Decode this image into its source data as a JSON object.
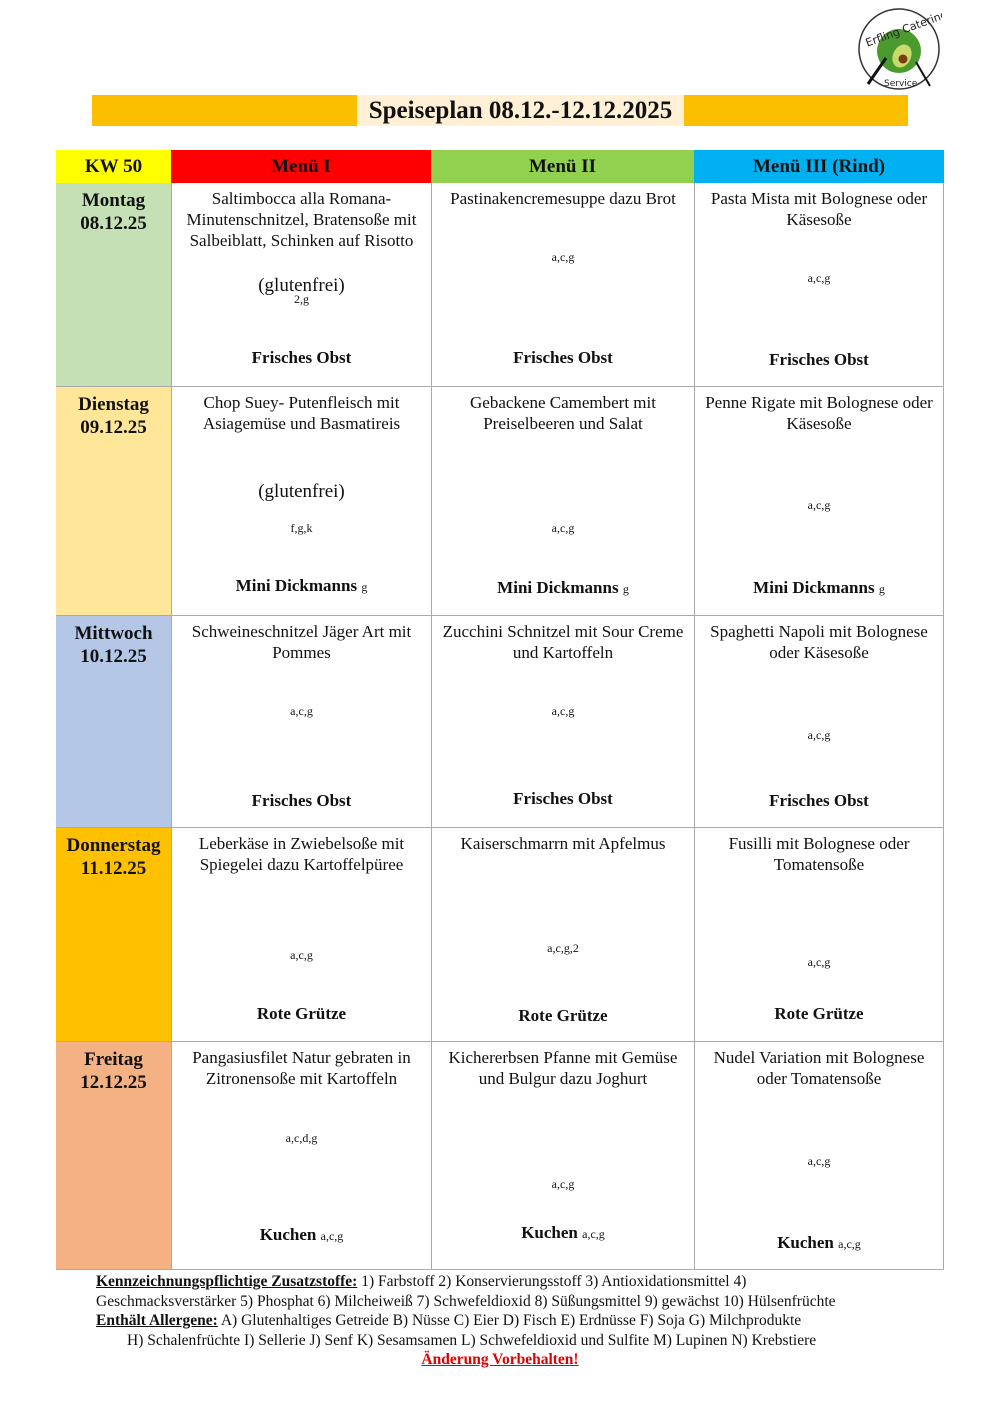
{
  "logo": {
    "text_top": "Erfling Catering",
    "text_bottom": "Service",
    "color": "#4a9a2e"
  },
  "title": "Speiseplan 08.12.-12.12.2025",
  "header": {
    "week": "KW 50",
    "menus": [
      {
        "label": "Menü I",
        "color": "#ff0000"
      },
      {
        "label": "Menü II",
        "color": "#92d050"
      },
      {
        "label": "Menü III (Rind)",
        "color": "#00b0f0"
      }
    ],
    "week_color": "#ffff00"
  },
  "days": [
    {
      "name": "Montag",
      "date": "08.12.25",
      "color": "#c5e0b4",
      "meals": [
        {
          "desc": "Saltimbocca alla Romana- Minutenschnitzel, Bratensoße mit Salbeiblatt, Schinken auf Risotto",
          "note": "(glutenfrei)",
          "code": "2,g",
          "dessert": "Frisches Obst",
          "dessert_code": ""
        },
        {
          "desc": "Pastinakencremesuppe dazu Brot",
          "note": "",
          "code": "a,c,g",
          "dessert": "Frisches Obst",
          "dessert_code": ""
        },
        {
          "desc": "Pasta Mista mit Bolognese oder Käsesoße",
          "note": "",
          "code": "a,c,g",
          "dessert": "Frisches Obst",
          "dessert_code": ""
        }
      ]
    },
    {
      "name": "Dienstag",
      "date": "09.12.25",
      "color": "#ffe699",
      "meals": [
        {
          "desc": "Chop Suey- Putenfleisch mit Asiagemüse und Basmatireis",
          "note": "(glutenfrei)",
          "code": "f,g,k",
          "dessert": "Mini Dickmanns",
          "dessert_code": "g"
        },
        {
          "desc": "Gebackene Camembert mit Preiselbeeren und Salat",
          "note": "",
          "code": "a,c,g",
          "dessert": "Mini Dickmanns",
          "dessert_code": "g"
        },
        {
          "desc": "Penne Rigate mit Bolognese oder Käsesoße",
          "note": "",
          "code": "a,c,g",
          "dessert": "Mini Dickmanns",
          "dessert_code": "g"
        }
      ]
    },
    {
      "name": "Mittwoch",
      "date": "10.12.25",
      "color": "#b4c7e7",
      "meals": [
        {
          "desc": "Schweineschnitzel Jäger Art mit Pommes",
          "note": "",
          "code": "a,c,g",
          "dessert": "Frisches Obst",
          "dessert_code": ""
        },
        {
          "desc": "Zucchini Schnitzel mit Sour Creme und Kartoffeln",
          "note": "",
          "code": "a,c,g",
          "dessert": "Frisches Obst",
          "dessert_code": ""
        },
        {
          "desc": "Spaghetti Napoli mit Bolognese oder Käsesoße",
          "note": "",
          "code": "a,c,g",
          "dessert": "Frisches Obst",
          "dessert_code": ""
        }
      ]
    },
    {
      "name": "Donnerstag",
      "date": "11.12.25",
      "color": "#ffc000",
      "meals": [
        {
          "desc": "Leberkäse in Zwiebelsoße mit Spiegelei dazu Kartoffelpüree",
          "note": "",
          "code": "a,c,g",
          "dessert": "Rote Grütze",
          "dessert_code": ""
        },
        {
          "desc": "Kaiserschmarrn mit Apfelmus",
          "note": "",
          "code": "a,c,g,2",
          "dessert": "Rote Grütze",
          "dessert_code": ""
        },
        {
          "desc": "Fusilli mit Bolognese oder Tomatensoße",
          "note": "",
          "code": "a,c,g",
          "dessert": "Rote Grütze",
          "dessert_code": ""
        }
      ]
    },
    {
      "name": "Freitag",
      "date": "12.12.25",
      "color": "#f4b183",
      "meals": [
        {
          "desc": "Pangasiusfilet Natur gebraten in Zitronensoße mit Kartoffeln",
          "note": "",
          "code": "a,c,d,g",
          "dessert": "Kuchen",
          "dessert_code": "a,c,g"
        },
        {
          "desc": "Kichererbsen Pfanne mit Gemüse und Bulgur dazu Joghurt",
          "note": "",
          "code": "a,c,g",
          "dessert": "Kuchen",
          "dessert_code": "a,c,g"
        },
        {
          "desc": "Nudel Variation  mit Bolognese oder Tomatensoße",
          "note": "",
          "code": "a,c,g",
          "dessert": "Kuchen",
          "dessert_code": "a,c,g"
        }
      ]
    }
  ],
  "footer": {
    "additives_label": "Kennzeichnungspflichtige Zusatzstoffe:",
    "additives_line1": " 1) Farbstoff 2) Konservierungsstoff 3) Antioxidationsmittel 4)",
    "additives_line2": "Geschmacksverstärker 5) Phosphat 6) Milcheiweiß 7) Schwefeldioxid 8) Süßungsmittel 9) gewächst 10) Hülsenfrüchte",
    "allergens_label": "Enthält Allergene:",
    "allergens_line1": " A) Glutenhaltiges Getreide B) Nüsse C) Eier D) Fisch E) Erdnüsse F) Soja G) Milchprodukte",
    "allergens_line2": "H) Schalenfrüchte I) Sellerie J) Senf K) Sesamsamen L) Schwefeldioxid und Sulfite M) Lupinen N) Krebstiere",
    "notice": "Änderung Vorbehalten!"
  }
}
